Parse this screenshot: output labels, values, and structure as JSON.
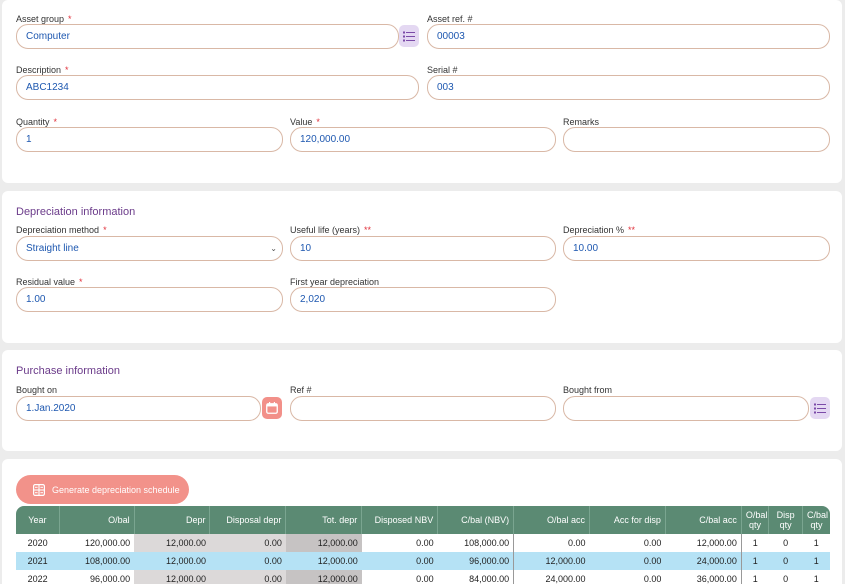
{
  "asset": {
    "asset_group_label": "Asset group",
    "asset_group_value": "Computer",
    "asset_ref_label": "Asset ref. #",
    "asset_ref_value": "00003",
    "description_label": "Description",
    "description_value": "ABC1234",
    "serial_label": "Serial #",
    "serial_value": "003",
    "quantity_label": "Quantity",
    "quantity_value": "1",
    "value_label": "Value",
    "value_value": "120,000.00",
    "remarks_label": "Remarks",
    "remarks_value": ""
  },
  "depreciation": {
    "title": "Depreciation information",
    "method_label": "Depreciation method",
    "method_value": "Straight line",
    "useful_life_label": "Useful life (years)",
    "useful_life_value": "10",
    "percent_label": "Depreciation %",
    "percent_value": "10.00",
    "residual_label": "Residual value",
    "residual_value": "1.00",
    "first_year_label": "First year depreciation",
    "first_year_value": "2,020"
  },
  "purchase": {
    "title": "Purchase information",
    "bought_on_label": "Bought on",
    "bought_on_value": "1.Jan.2020",
    "ref_label": "Ref #",
    "ref_value": "",
    "bought_from_label": "Bought from",
    "bought_from_value": ""
  },
  "schedule": {
    "generate_label": "Generate depreciation schedule",
    "headers": {
      "year": "Year",
      "obal": "O/bal",
      "depr": "Depr",
      "disposal_depr": "Disposal depr",
      "tot_depr": "Tot. depr",
      "disposed_nbv": "Disposed NBV",
      "cbal_nbv": "C/bal (NBV)",
      "obal_acc": "O/bal acc",
      "acc_for_disp": "Acc for disp",
      "cbal_acc": "C/bal acc",
      "obal_qty_1": "O/bal",
      "obal_qty_2": "qty",
      "disp_qty_1": "Disp",
      "disp_qty_2": "qty",
      "cbal_qty_1": "C/bal",
      "cbal_qty_2": "qty"
    },
    "rows": [
      {
        "year": "2020",
        "obal": "120,000.00",
        "depr": "12,000.00",
        "disposal_depr": "0.00",
        "tot_depr": "12,000.00",
        "disposed_nbv": "0.00",
        "cbal_nbv": "108,000.00",
        "obal_acc": "0.00",
        "acc_for_disp": "0.00",
        "cbal_acc": "12,000.00",
        "obal_qty": "1",
        "disp_qty": "0",
        "cbal_qty": "1"
      },
      {
        "year": "2021",
        "obal": "108,000.00",
        "depr": "12,000.00",
        "disposal_depr": "0.00",
        "tot_depr": "12,000.00",
        "disposed_nbv": "0.00",
        "cbal_nbv": "96,000.00",
        "obal_acc": "12,000.00",
        "acc_for_disp": "0.00",
        "cbal_acc": "24,000.00",
        "obal_qty": "1",
        "disp_qty": "0",
        "cbal_qty": "1"
      },
      {
        "year": "2022",
        "obal": "96,000.00",
        "depr": "12,000.00",
        "disposal_depr": "0.00",
        "tot_depr": "12,000.00",
        "disposed_nbv": "0.00",
        "cbal_nbv": "84,000.00",
        "obal_acc": "24,000.00",
        "acc_for_disp": "0.00",
        "cbal_acc": "36,000.00",
        "obal_qty": "1",
        "disp_qty": "0",
        "cbal_qty": "1"
      }
    ]
  },
  "icons": {
    "list": "list-icon",
    "calendar": "calendar-icon",
    "chevron": "chevron-down-icon"
  },
  "colors": {
    "accent_button": "#f2928a",
    "table_header": "#5b8a73",
    "highlight_row": "#b5e2f5",
    "section_title": "#6b3b8a",
    "value_text": "#1e58b0"
  }
}
